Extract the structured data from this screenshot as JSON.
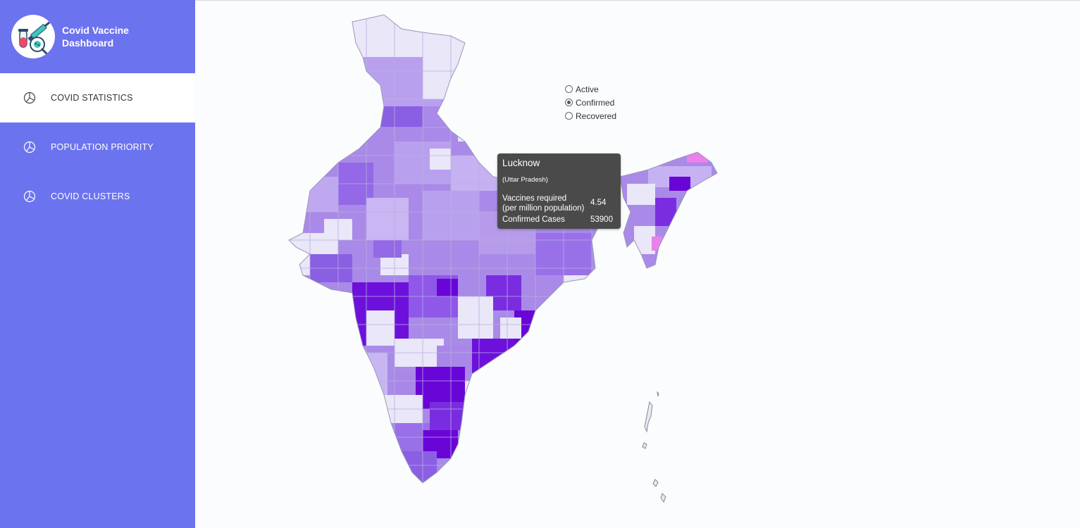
{
  "app": {
    "title_line1": "Covid Vaccine",
    "title_line2": "Dashboard",
    "logo_icon": "vaccine-syringe-virus-icon"
  },
  "sidebar": {
    "items": [
      {
        "label": "COVID STATISTICS",
        "icon": "pie-chart-icon",
        "active": true
      },
      {
        "label": "POPULATION PRIORITY",
        "icon": "pie-chart-icon",
        "active": false
      },
      {
        "label": "COVID CLUSTERS",
        "icon": "pie-chart-icon",
        "active": false
      }
    ]
  },
  "filter": {
    "options": [
      "Active",
      "Confirmed",
      "Recovered"
    ],
    "selected": "Confirmed"
  },
  "tooltip": {
    "district": "Lucknow",
    "state": "(Uttar Pradesh)",
    "vaccines_label_line1": "Vaccines required",
    "vaccines_label_line2": "(per million population)",
    "vaccines_value": "4.54",
    "cases_label": "Confirmed Cases",
    "cases_value": "53900"
  },
  "colors": {
    "sidebar": "#6c73ee",
    "scale_light": "#e8e6f7",
    "scale_mid": "#a07ae6",
    "scale_dark": "#6a05d8",
    "tooltip_bg": "#4a4a4a",
    "highlight_pink": "#ea80ea"
  }
}
